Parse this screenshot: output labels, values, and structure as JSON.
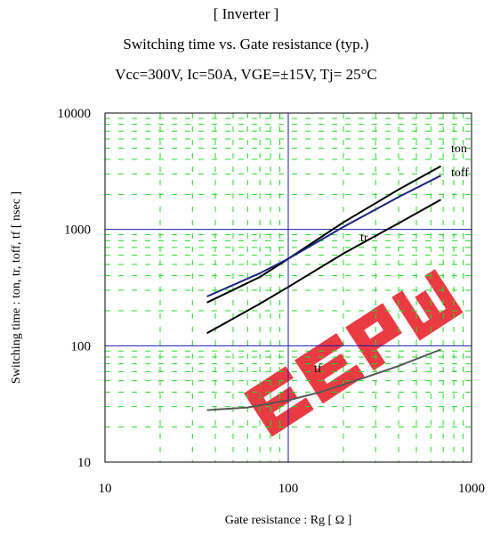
{
  "header": {
    "line1": "[ Inverter ]",
    "line2": "Switching time  vs.  Gate resistance  (typ.)",
    "line3": "Vcc=300V, Ic=50A, VGE=±15V, Tj= 25°C"
  },
  "colors": {
    "major_grid": "#1a1aa8",
    "minor_grid": "#22dd22",
    "ton": "#000000",
    "toff": "#1a237e",
    "tr": "#000000",
    "tf": "#555555",
    "watermark": "#e8202a"
  },
  "chart_data": {
    "type": "line",
    "title": "Switching time  vs.  Gate resistance  (typ.)",
    "xlabel": "Gate resistance  :  Rg  [ Ω ]",
    "ylabel": "Switching time  :  ton, tr, toff, tf  [ nsec ]",
    "x_scale": "log",
    "y_scale": "log",
    "xlim": [
      10,
      1000
    ],
    "ylim": [
      10,
      10000
    ],
    "x_ticks": [
      "10",
      "100",
      "1000"
    ],
    "y_ticks": [
      "10",
      "100",
      "1000",
      "10000"
    ],
    "grid": true,
    "series": [
      {
        "name": "ton",
        "x": [
          36,
          70,
          100,
          200,
          400,
          680
        ],
        "y": [
          235,
          390,
          560,
          1150,
          2200,
          3500
        ]
      },
      {
        "name": "toff",
        "x": [
          36,
          70,
          100,
          200,
          400,
          680
        ],
        "y": [
          265,
          420,
          560,
          1050,
          1900,
          2900
        ]
      },
      {
        "name": "tr",
        "x": [
          36,
          70,
          100,
          200,
          400,
          680
        ],
        "y": [
          128,
          230,
          320,
          620,
          1130,
          1800
        ]
      },
      {
        "name": "tf",
        "x": [
          36,
          60,
          100,
          150,
          250,
          400,
          680
        ],
        "y": [
          28,
          29.5,
          34,
          40,
          52,
          67,
          93
        ]
      }
    ]
  },
  "watermark": {
    "text": "EEPW"
  }
}
